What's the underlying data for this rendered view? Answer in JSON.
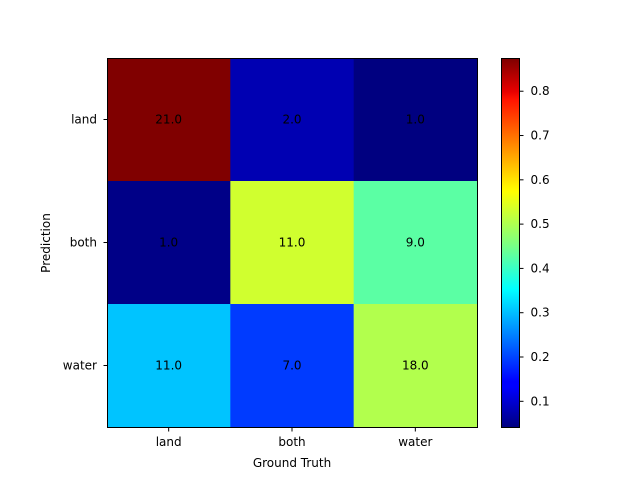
{
  "chart_data": {
    "type": "heatmap",
    "xlabel": "Ground Truth",
    "ylabel": "Prediction",
    "x_categories": [
      "land",
      "both",
      "water"
    ],
    "y_categories": [
      "land",
      "both",
      "water"
    ],
    "cell_labels": [
      [
        "21.0",
        "2.0",
        "1.0"
      ],
      [
        "1.0",
        "11.0",
        "9.0"
      ],
      [
        "11.0",
        "7.0",
        "18.0"
      ]
    ],
    "cell_values": [
      [
        0.875,
        0.083,
        0.042
      ],
      [
        0.048,
        0.524,
        0.429
      ],
      [
        0.306,
        0.194,
        0.5
      ]
    ],
    "colormap": "jet",
    "colorbar": {
      "range": [
        0.042,
        0.875
      ],
      "ticks": [
        0.1,
        0.2,
        0.3,
        0.4,
        0.5,
        0.6,
        0.7,
        0.8
      ],
      "tick_labels": [
        "0.1",
        "0.2",
        "0.3",
        "0.4",
        "0.5",
        "0.6",
        "0.7",
        "0.8"
      ]
    },
    "grid": false
  }
}
